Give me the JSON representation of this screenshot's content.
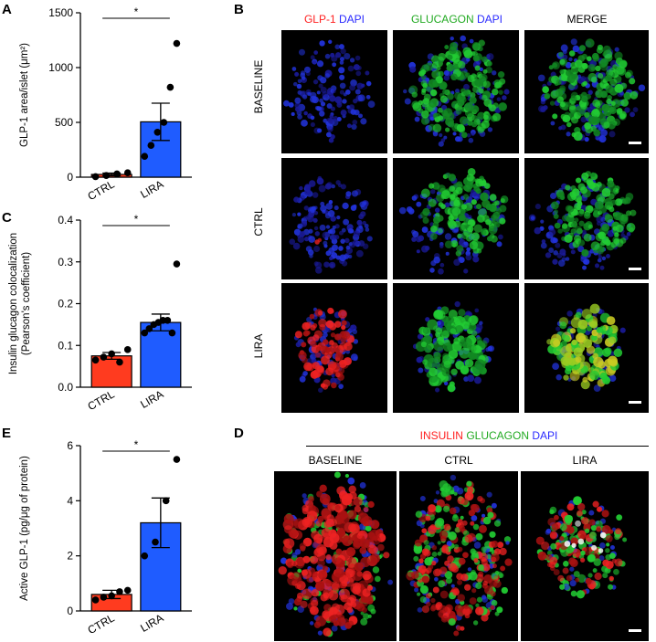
{
  "panels": {
    "A": "A",
    "B": "B",
    "C": "C",
    "D": "D",
    "E": "E"
  },
  "colors": {
    "ctrl": "#ff3b1f",
    "lira": "#1f5cff",
    "glp1": "#ff2020",
    "dapi": "#2a2aff",
    "glucagon": "#22cc22",
    "insulin": "#ff2020"
  },
  "chart_data": [
    {
      "id": "A",
      "type": "bar",
      "categories": [
        "CTRL",
        "LIRA"
      ],
      "values": [
        25,
        505
      ],
      "errors": [
        12,
        170
      ],
      "points": [
        [
          5,
          15,
          30,
          40
        ],
        [
          190,
          290,
          410,
          500,
          820,
          1220
        ]
      ],
      "ylabel": "GLP-1 area/islet (μm²)",
      "ylim": [
        0,
        1500
      ],
      "yticks": [
        "0",
        "500",
        "1000",
        "1500"
      ],
      "significance": "*"
    },
    {
      "id": "C",
      "type": "bar",
      "categories": [
        "CTRL",
        "LIRA"
      ],
      "values": [
        0.075,
        0.155
      ],
      "errors": [
        0.008,
        0.02
      ],
      "points": [
        [
          0.065,
          0.072,
          0.08,
          0.06,
          0.09
        ],
        [
          0.13,
          0.14,
          0.15,
          0.155,
          0.16,
          0.16,
          0.13,
          0.295
        ]
      ],
      "ylabel": "Insulin glucagon colocalization (Pearson's coefficient)",
      "ylabel_line1": "Insulin glucagon colocalization",
      "ylabel_line2": "(Pearson's coefficient)",
      "ylim": [
        0,
        0.4
      ],
      "yticks": [
        "0.0",
        "0.1",
        "0.2",
        "0.3",
        "0.4"
      ],
      "significance": "*"
    },
    {
      "id": "E",
      "type": "bar",
      "categories": [
        "CTRL",
        "LIRA"
      ],
      "values": [
        0.6,
        3.2
      ],
      "errors": [
        0.15,
        0.9
      ],
      "points": [
        [
          0.4,
          0.5,
          0.55,
          0.7,
          0.75
        ],
        [
          2.0,
          2.5,
          4.0,
          5.5
        ]
      ],
      "ylabel": "Active GLP-1 (pg/μg of protein)",
      "ylim": [
        0,
        6
      ],
      "yticks": [
        "0",
        "2",
        "4",
        "6"
      ],
      "significance": "*"
    }
  ],
  "panelB": {
    "headers": {
      "col1_a": "GLP-1",
      "col1_b": "DAPI",
      "col2_a": "GLUCAGON",
      "col2_b": "DAPI",
      "col3": "MERGE"
    },
    "rows": [
      "BASELINE",
      "CTRL",
      "LIRA"
    ]
  },
  "panelD": {
    "header_a": "INSULIN",
    "header_b": "GLUCAGON",
    "header_c": "DAPI",
    "columns": [
      "BASELINE",
      "CTRL",
      "LIRA"
    ]
  }
}
